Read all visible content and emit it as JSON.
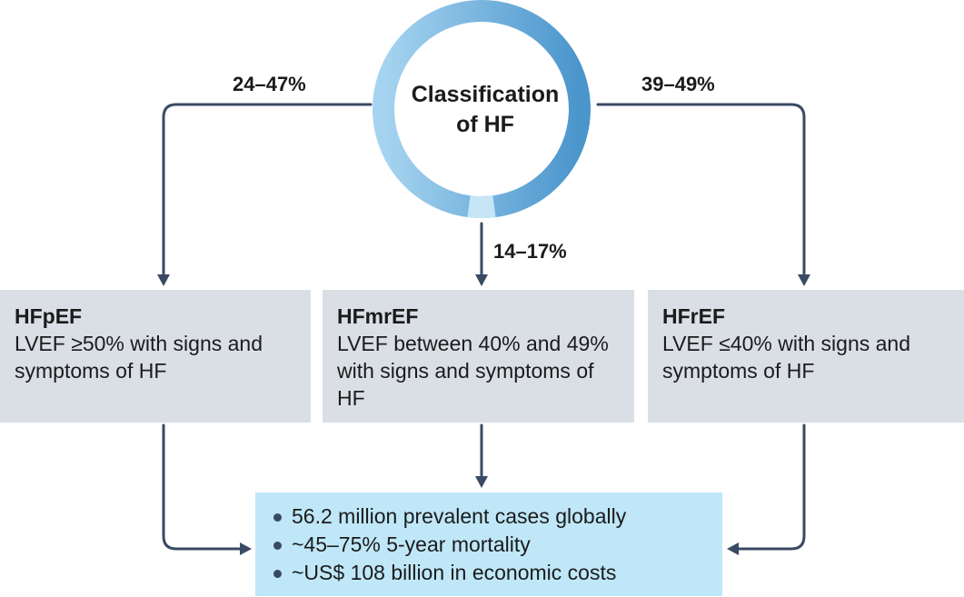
{
  "center": {
    "label_line1": "Classification",
    "label_line2": "of HF",
    "ring_colors": [
      "#8fc8ec",
      "#4a95cc",
      "#c6e6f8"
    ]
  },
  "percentages": {
    "hfpef": "24–47%",
    "hfmref": "14–17%",
    "hfref": "39–49%"
  },
  "categories": [
    {
      "id": "hfpef",
      "name": "HFpEF",
      "description": "LVEF ≥50% with signs and symptoms of HF"
    },
    {
      "id": "hfmref",
      "name": "HFmrEF",
      "description": "LVEF between 40% and 49% with signs and symptoms of HF"
    },
    {
      "id": "hfref",
      "name": "HFrEF",
      "description": "LVEF ≤40% with signs and symptoms of HF"
    }
  ],
  "summary": {
    "items": [
      "56.2 million prevalent cases globally",
      "~45–75% 5-year mortality",
      "~US$ 108 billion in economic costs"
    ]
  },
  "colors": {
    "arrow": "#3a4a63",
    "box_fill": "#dadfe6",
    "summary_fill": "#bfe7f8"
  }
}
